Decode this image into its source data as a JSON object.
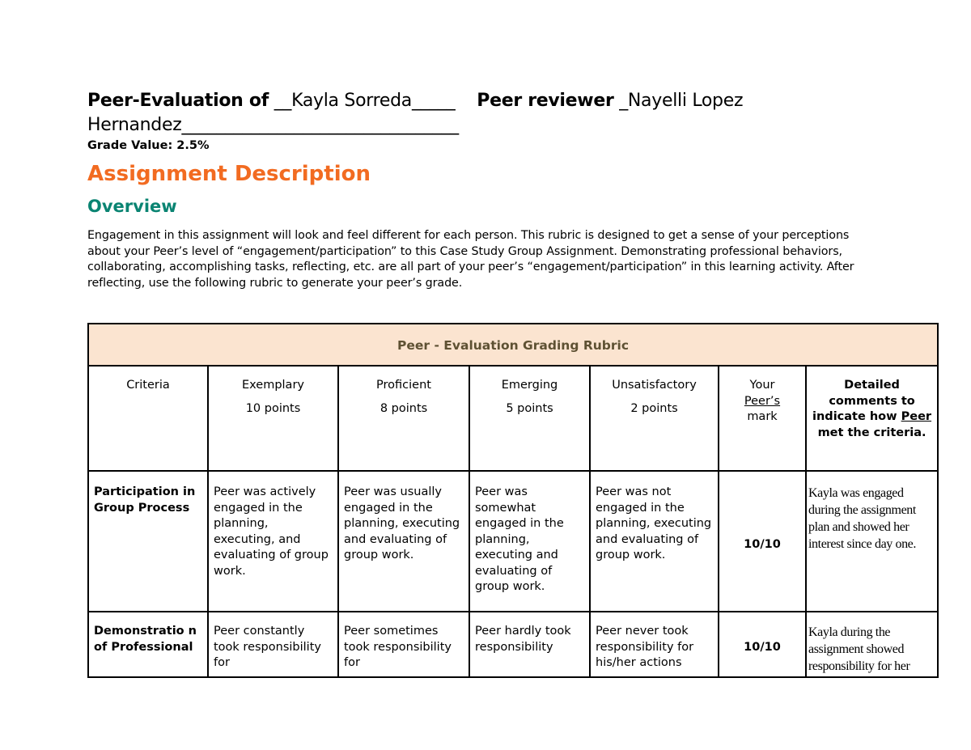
{
  "header": {
    "title_prefix": "Peer-Evaluation of",
    "peer_name": "__Kayla Sorreda_____",
    "reviewer_label": "Peer reviewer",
    "reviewer_name": "_Nayelli Lopez Hernandez________________________________",
    "grade_value": "Grade Value: 2.5%"
  },
  "section_title": "Assignment Description",
  "overview_title": "Overview",
  "overview_text": "Engagement in this assignment will look and feel different for each person. This rubric is designed to get a sense of your perceptions about your Peer’s level of “engagement/participation” to this Case Study Group Assignment. Demonstrating professional behaviors, collaborating, accomplishing tasks, reflecting, etc. are all part of your peer’s “engagement/participation” in this learning activity. After reflecting, use the following rubric to generate your peer’s grade.",
  "colors": {
    "heading_orange": "#f26b21",
    "heading_teal": "#0a8472",
    "rubric_header_bg": "#fbe4d0"
  },
  "rubric": {
    "caption": "Peer - Evaluation Grading Rubric",
    "columns": [
      {
        "label": "Criteria",
        "points": ""
      },
      {
        "label": "Exemplary",
        "points": "10 points"
      },
      {
        "label": "Proficient",
        "points": "8 points"
      },
      {
        "label": "Emerging",
        "points": "5 points"
      },
      {
        "label": "Unsatisfactory",
        "points": "2 points"
      }
    ],
    "mark_header": {
      "pre": "Your",
      "underlined": "Peer’s",
      "post": "mark"
    },
    "comments_header": {
      "pre": "Detailed comments to indicate how",
      "underlined": "Peer",
      "post": "met the criteria."
    },
    "rows": [
      {
        "criteria": "Participation in Group Process",
        "exemplary": "Peer was actively engaged in the planning, executing, and evaluating of group work.",
        "proficient": "Peer was usually engaged in the planning, executing and evaluating of group work.",
        "emerging": "Peer was somewhat engaged in the planning, executing and evaluating of group work.",
        "unsatisfactory": "Peer was not engaged in the planning, executing and evaluating of group work.",
        "mark": "10/10",
        "comment": "Kayla was engaged during the assignment plan and showed her interest since day one."
      },
      {
        "criteria": "Demonstratio n of Professional",
        "exemplary": "Peer constantly took responsibility for",
        "proficient": "Peer sometimes took responsibility for",
        "emerging": "Peer hardly took responsibility",
        "unsatisfactory": "Peer never took responsibility for his/her actions",
        "mark": "10/10",
        "comment": "Kayla during the assignment showed responsibility for her"
      }
    ]
  }
}
